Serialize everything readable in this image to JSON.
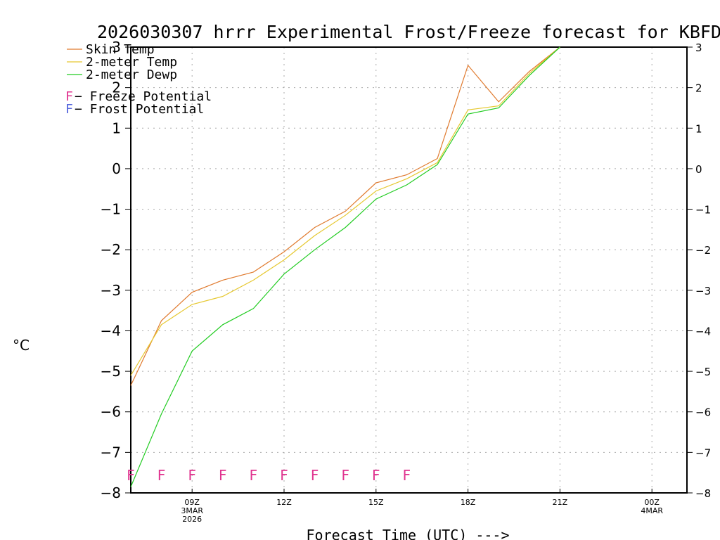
{
  "chart_data": {
    "type": "line",
    "title": "2026030307 hrrr Experimental Frost/Freeze forecast for KBFD",
    "xlabel": "Forecast Time (UTC) --->",
    "ylabel_unit": "°C",
    "ylim": [
      -8,
      3
    ],
    "y_ticks": [
      -8,
      -7,
      -6,
      -5,
      -4,
      -3,
      -2,
      -1,
      0,
      1,
      2,
      3
    ],
    "y_tick_labels": [
      "−8",
      "−7",
      "−6",
      "−5",
      "−4",
      "−3",
      "−2",
      "−1",
      "0",
      "1",
      "2",
      "3"
    ],
    "x_hours": [
      7,
      8,
      9,
      10,
      11,
      12,
      13,
      14,
      15,
      16,
      17,
      18,
      19,
      20,
      21
    ],
    "xlim_hours": [
      7,
      25
    ],
    "x_ticks": [
      {
        "hour": 9,
        "lines": [
          "09Z",
          "3MAR",
          "2026"
        ]
      },
      {
        "hour": 12,
        "lines": [
          "12Z"
        ]
      },
      {
        "hour": 15,
        "lines": [
          "15Z"
        ]
      },
      {
        "hour": 18,
        "lines": [
          "18Z"
        ]
      },
      {
        "hour": 21,
        "lines": [
          "21Z"
        ]
      },
      {
        "hour": 24,
        "lines": [
          "00Z",
          "4MAR"
        ]
      }
    ],
    "series": [
      {
        "name": "Skin Temp",
        "color": "#e07a2e",
        "values": [
          -5.35,
          -3.75,
          -3.05,
          -2.75,
          -2.55,
          -2.05,
          -1.45,
          -1.05,
          -0.35,
          -0.15,
          0.25,
          2.55,
          1.65,
          2.4,
          3.0
        ]
      },
      {
        "name": "2-meter Temp",
        "color": "#e6c830",
        "values": [
          -5.1,
          -3.85,
          -3.35,
          -3.15,
          -2.75,
          -2.25,
          -1.65,
          -1.15,
          -0.55,
          -0.25,
          0.15,
          1.45,
          1.55,
          2.35,
          3.0
        ]
      },
      {
        "name": "2-meter Dewp",
        "color": "#22cc22",
        "values": [
          -7.85,
          -6.05,
          -4.5,
          -3.85,
          -3.45,
          -2.6,
          -2.0,
          -1.45,
          -0.75,
          -0.4,
          0.1,
          1.35,
          1.5,
          2.3,
          3.0
        ]
      }
    ],
    "flags": {
      "glyph": "F",
      "color": "#e0338f",
      "level": -7.55,
      "hours": [
        7,
        8,
        9,
        10,
        11,
        12,
        13,
        14,
        15,
        16
      ]
    },
    "flag_legend": [
      {
        "glyph": "F",
        "text": " − Freeze Potential",
        "color": "#e0338f"
      },
      {
        "glyph": "F",
        "text": " − Frost Potential",
        "color": "#5566dd"
      }
    ]
  }
}
